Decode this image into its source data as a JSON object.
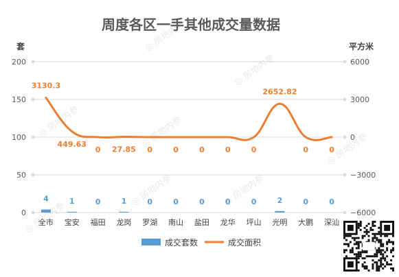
{
  "chart_data": {
    "type": "bar",
    "title": "周度各区一手其他成交量数据",
    "categories": [
      "全市",
      "宝安",
      "福田",
      "龙岗",
      "罗湖",
      "南山",
      "盐田",
      "龙华",
      "坪山",
      "光明",
      "大鹏",
      "深汕"
    ],
    "y_left_label": "套",
    "y_right_label": "平方米",
    "y_left_ticks": [
      "200",
      "150",
      "100",
      "50",
      "0"
    ],
    "y_right_ticks": [
      "6000",
      "3000",
      "0",
      "−3000",
      "−6000"
    ],
    "ylim_left": [
      0,
      200
    ],
    "ylim_right": [
      -6000,
      6000
    ],
    "series": [
      {
        "name": "成交套数",
        "type": "bar",
        "axis": "left",
        "values": [
          4,
          1,
          0,
          1,
          0,
          0,
          0,
          0,
          0,
          2,
          0,
          0
        ],
        "labels": [
          "4",
          "1",
          "0",
          "1",
          "0",
          "0",
          "0",
          "0",
          "0",
          "2",
          "0",
          "0"
        ]
      },
      {
        "name": "成交面积",
        "type": "line",
        "axis": "right",
        "values": [
          3130.3,
          449.63,
          0,
          27.85,
          0,
          0,
          0,
          0,
          0,
          2652.82,
          0,
          0
        ],
        "labels": [
          "3130.3",
          "449.63",
          "0",
          "27.85",
          "0",
          "0",
          "0",
          "0",
          "0",
          "2652.82",
          "0",
          "0"
        ]
      }
    ],
    "grid": true,
    "legend_position": "bottom",
    "colors": {
      "bar": "#5b9bd5",
      "line": "#ed7d31",
      "bar_label": "#5b9bd5",
      "line_label": "#ed7d31"
    }
  },
  "watermark": "房地内参"
}
